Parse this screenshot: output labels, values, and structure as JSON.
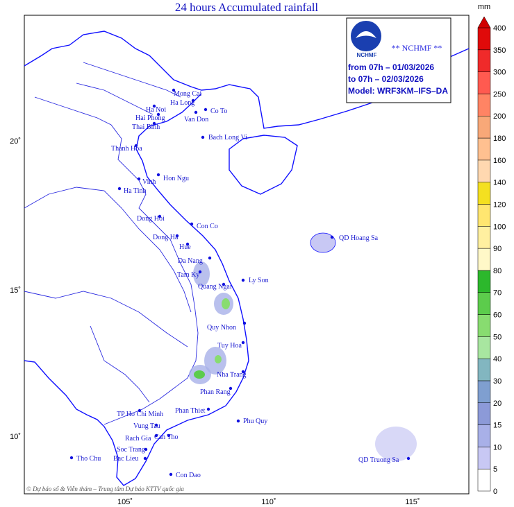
{
  "title": "24 hours Accumulated rainfall",
  "info_box": {
    "agency": "** NCHMF **",
    "logo_text": "NCHMF",
    "lines": [
      "from 07h – 01/03/2026",
      "to 07h – 02/03/2026",
      "Model: WRF3KM–IFS–DA"
    ]
  },
  "colorbar": {
    "unit": "mm",
    "levels": [
      0,
      5,
      10,
      15,
      20,
      30,
      40,
      50,
      60,
      70,
      80,
      90,
      100,
      120,
      140,
      160,
      180,
      200,
      250,
      300,
      350,
      400
    ],
    "colors": [
      "#ffffff",
      "#c8c8f4",
      "#a8b0e8",
      "#8c9ad8",
      "#7f9fd0",
      "#82b6c0",
      "#a8e6a0",
      "#88dc70",
      "#5ccc4c",
      "#2cb82c",
      "#fff8c8",
      "#fff0a0",
      "#ffe670",
      "#f4e020",
      "#ffd8b0",
      "#ffc090",
      "#f8a878",
      "#ff8464",
      "#ff5a50",
      "#f02a2a",
      "#e00a0a"
    ],
    "top_color": "#d00000"
  },
  "lat_labels": [
    "20˚",
    "15˚",
    "10˚"
  ],
  "lon_labels": [
    "105˚",
    "110˚",
    "115˚"
  ],
  "places": [
    "Mong Cai",
    "Ha Long",
    "Ha Noi",
    "Hai Phong",
    "Thai Binh",
    "Van Don",
    "Co To",
    "Bach Long Vi",
    "Thanh Hoa",
    "Vinh",
    "Hon Ngu",
    "Ha Tinh",
    "Dong Hoi",
    "Con Co",
    "Dong Ha",
    "Hue",
    "Da Nang",
    "Tam Ky",
    "Ly Son",
    "Quang Ngai",
    "QD Hoang Sa",
    "Quy Nhon",
    "Tuy Hoa",
    "Nha Trang",
    "Phan Rang",
    "Phan Thiet",
    "TP Ho Chi Minh",
    "Vung Tau",
    "Phu Quy",
    "Rach Gia",
    "Can Tho",
    "Tho Chu",
    "Soc Trang",
    "Bac Lieu",
    "Con Dao",
    "QD Truong Sa"
  ],
  "credit": "© Dự báo số & Viễn thám – Trung tâm Dự báo KTTV quốc gia"
}
